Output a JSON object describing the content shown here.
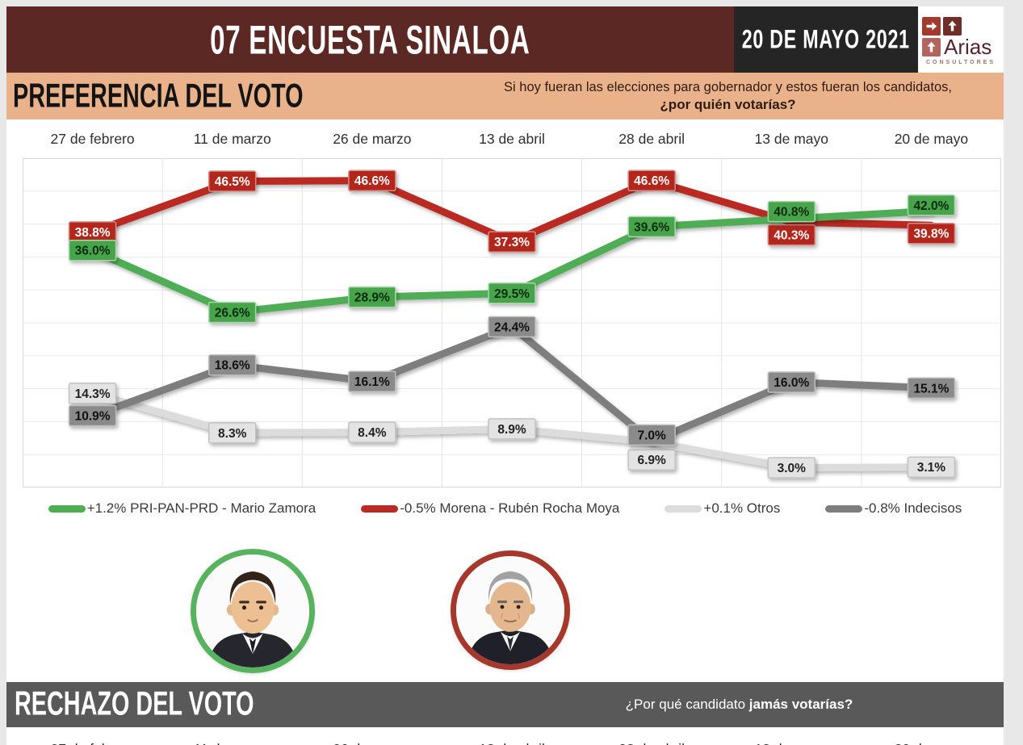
{
  "header": {
    "title": "07 ENCUESTA SINALOA",
    "date_badge": "20 DE MAYO 2021",
    "banner_color": "#5c2823",
    "badge_bg": "#252525",
    "logo": {
      "brand": "Arias",
      "subtitle": "CONSULTORES",
      "arrow_right_color": "#a23b2d",
      "arrow_up_dark_color": "#6e2f28",
      "arrow_up_light_color": "#b2655c"
    }
  },
  "preferencia": {
    "section_title": "PREFERENCIA DEL VOTO",
    "band_color": "#eab28b",
    "question_line1": "Si hoy fueran las elecciones para gobernador y estos fueran los candidatos,",
    "question_line2": "¿por quién votarías?"
  },
  "chart_data": {
    "type": "line",
    "title": "PREFERENCIA DEL VOTO",
    "x": [
      "27 de febrero",
      "11 de marzo",
      "26 de marzo",
      "13 de abril",
      "28 de abril",
      "13 de mayo",
      "20 de mayo"
    ],
    "ylim": [
      0,
      50
    ],
    "grid": true,
    "legend_position": "bottom",
    "value_format": "percent-1-decimal",
    "series": [
      {
        "name": "PRI-PAN-PRD - Mario Zamora",
        "legend": "+1.2% PRI-PAN-PRD - Mario Zamora",
        "delta": "+1.2%",
        "color": "#4fae54",
        "label_bg": "#46a44c",
        "label_border": "#a7d8a9",
        "label_color": "#0a2b0e",
        "values": [
          36.0,
          26.6,
          28.9,
          29.5,
          39.6,
          40.8,
          42.0
        ],
        "label_dy": [
          0,
          0,
          0,
          0,
          0,
          -9,
          -7
        ]
      },
      {
        "name": "Morena - Rubén Rocha Moya",
        "legend": "-0.5% Morena - Rubén Rocha Moya",
        "delta": "-0.5%",
        "color": "#ba2c23",
        "label_bg": "#b3281f",
        "label_border": "#d88b85",
        "label_color": "#ffffff",
        "values": [
          38.8,
          46.5,
          46.6,
          37.3,
          46.6,
          40.3,
          39.8
        ],
        "label_dy": [
          0,
          0,
          0,
          0,
          0,
          16,
          10
        ]
      },
      {
        "name": "Otros",
        "legend": "+0.1% Otros",
        "delta": "+0.1%",
        "color": "#dcdcdc",
        "label_bg": "#e3e3e3",
        "label_border": "#c2c2c2",
        "label_color": "#222222",
        "values": [
          14.3,
          8.3,
          8.4,
          8.9,
          6.9,
          3.0,
          3.1
        ],
        "label_dy": [
          0,
          0,
          0,
          0,
          22,
          0,
          0
        ]
      },
      {
        "name": "Indecisos",
        "legend": "-0.8% Indecisos",
        "delta": "-0.8%",
        "color": "#7e7e7e",
        "label_bg": "#8a8a8a",
        "label_border": "#bdbdbd",
        "label_color": "#111111",
        "values": [
          10.9,
          18.6,
          16.1,
          24.4,
          7.0,
          16.0,
          15.1
        ],
        "label_dy": [
          0,
          0,
          0,
          0,
          -8,
          0,
          0
        ]
      }
    ]
  },
  "candidates": [
    {
      "name": "Mario Zamora",
      "ring_color": "#58b35e",
      "variant": "dark-hair"
    },
    {
      "name": "Rubén Rocha Moya",
      "ring_color": "#a5372b",
      "variant": "gray-hair"
    }
  ],
  "rechazo": {
    "section_title": "RECHAZO DEL VOTO",
    "bar_color": "#595959",
    "question_prefix": "¿Por qué candidato ",
    "question_bold": "jamás votarías?"
  }
}
